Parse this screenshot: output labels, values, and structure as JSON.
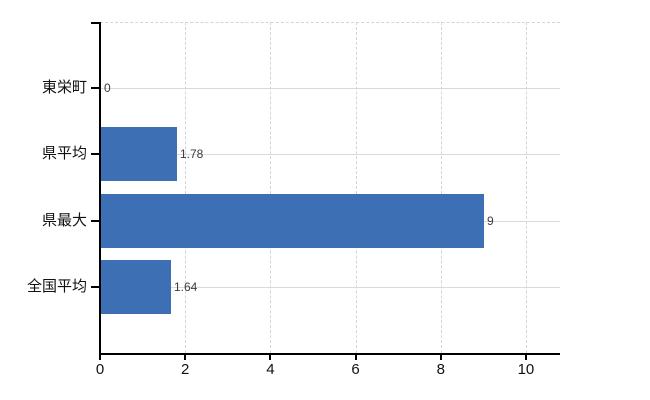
{
  "chart_data": {
    "type": "bar",
    "orientation": "horizontal",
    "title": "",
    "xlabel": "",
    "ylabel": "",
    "categories": [
      "東栄町",
      "県平均",
      "県最大",
      "全国平均"
    ],
    "values": [
      0,
      1.78,
      9,
      1.64
    ],
    "value_labels": [
      "0",
      "1.78",
      "9",
      "1.64"
    ],
    "x_tick_values": [
      0,
      2,
      4,
      6,
      8,
      10
    ],
    "x_tick_labels": [
      "0",
      "2",
      "4",
      "6",
      "8",
      "10"
    ],
    "xlim": [
      0,
      10.8
    ],
    "grid": "on",
    "gridline_style": {
      "horizontal": "solid",
      "vertical": "dashed",
      "top_border": "dashed"
    },
    "legend": "none",
    "colors": {
      "bar": "#3d6fb4",
      "axis": "#000000",
      "gridline_horizontal": "#d7dcd7",
      "gridline_vertical": "#d4d6d4",
      "value_label": "#3c3c3c",
      "tick_label": "#111111",
      "background": "#ffffff"
    }
  }
}
